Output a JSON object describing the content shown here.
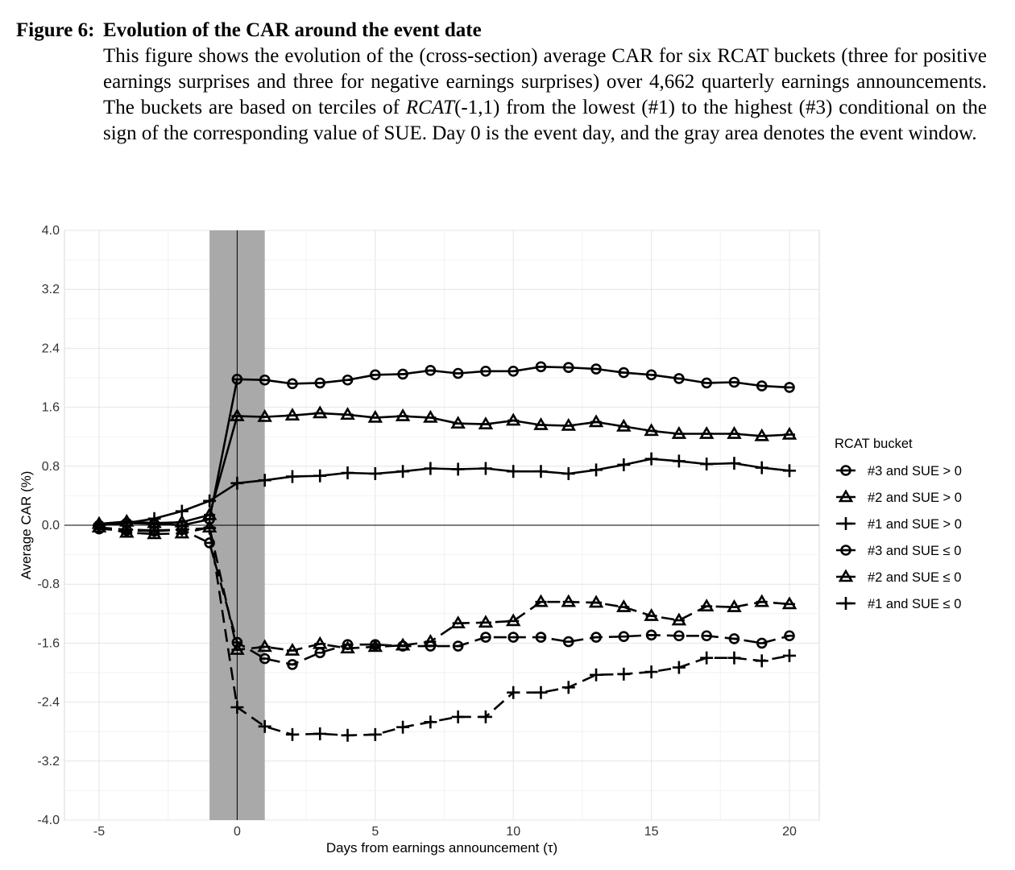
{
  "caption": {
    "label": "Figure 6:",
    "title": "Evolution of the CAR around the event date",
    "body_before": "This figure shows the evolution of the (cross-section) average CAR for six RCAT buckets (three for positive earnings surprises and three for negative earnings surprises) over 4,662 quarterly earnings announcements. The buckets are based on terciles of ",
    "body_italic": "RCAT",
    "body_after": "(-1,1) from the lowest (#1) to the highest (#3) conditional on the sign of the corresponding value of SUE. Day 0 is the event day, and the gray area denotes the event window."
  },
  "chart_data": {
    "type": "line",
    "xlabel": "Days from earnings announcement (τ)",
    "ylabel": "Average CAR (%)",
    "xlim": [
      -5,
      20
    ],
    "ylim": [
      -4.0,
      4.0
    ],
    "x_ticks": [
      -5,
      0,
      5,
      10,
      15,
      20
    ],
    "y_ticks": [
      "4.0",
      "3.2",
      "2.4",
      "1.6",
      "0.8",
      "0.0",
      "-0.8",
      "-1.6",
      "-2.4",
      "-3.2",
      "-4.0"
    ],
    "grid": true,
    "event_window": [
      -1,
      1
    ],
    "event_window_color": "#a9a9a9",
    "legend_title": "RCAT bucket",
    "legend_position": "right",
    "x": [
      -5,
      -4,
      -3,
      -2,
      -1,
      0,
      1,
      2,
      3,
      4,
      5,
      6,
      7,
      8,
      9,
      10,
      11,
      12,
      13,
      14,
      15,
      16,
      17,
      18,
      19,
      20
    ],
    "series": [
      {
        "name": "#3 and SUE > 0",
        "marker": "circle-bar",
        "dash": "solid",
        "values": [
          0.0,
          0.03,
          0.02,
          0.0,
          0.08,
          1.98,
          1.97,
          1.92,
          1.93,
          1.97,
          2.04,
          2.05,
          2.1,
          2.06,
          2.09,
          2.09,
          2.15,
          2.14,
          2.12,
          2.07,
          2.04,
          1.99,
          1.93,
          1.94,
          1.89,
          1.87
        ]
      },
      {
        "name": "#2 and SUE > 0",
        "marker": "triangle-bar",
        "dash": "solid",
        "values": [
          0.02,
          0.05,
          0.03,
          0.04,
          0.14,
          1.48,
          1.47,
          1.49,
          1.52,
          1.5,
          1.46,
          1.48,
          1.46,
          1.38,
          1.37,
          1.42,
          1.36,
          1.35,
          1.4,
          1.34,
          1.28,
          1.24,
          1.24,
          1.24,
          1.21,
          1.23
        ]
      },
      {
        "name": "#1 and SUE > 0",
        "marker": "plus",
        "dash": "solid",
        "values": [
          0.0,
          0.03,
          0.09,
          0.19,
          0.33,
          0.57,
          0.61,
          0.66,
          0.67,
          0.71,
          0.7,
          0.73,
          0.77,
          0.76,
          0.77,
          0.73,
          0.73,
          0.7,
          0.75,
          0.82,
          0.9,
          0.87,
          0.83,
          0.84,
          0.78,
          0.74
        ]
      },
      {
        "name": "#3 and SUE ≤ 0",
        "marker": "circle-bar",
        "dash": "dashed",
        "values": [
          -0.05,
          -0.07,
          -0.08,
          -0.06,
          -0.24,
          -1.59,
          -1.81,
          -1.89,
          -1.73,
          -1.62,
          -1.62,
          -1.64,
          -1.64,
          -1.64,
          -1.52,
          -1.52,
          -1.52,
          -1.58,
          -1.52,
          -1.51,
          -1.49,
          -1.5,
          -1.5,
          -1.54,
          -1.6,
          -1.5
        ]
      },
      {
        "name": "#2 and SUE ≤ 0",
        "marker": "triangle-bar",
        "dash": "dashed",
        "values": [
          -0.03,
          -0.1,
          -0.12,
          -0.11,
          -0.03,
          -1.69,
          -1.65,
          -1.7,
          -1.61,
          -1.67,
          -1.65,
          -1.63,
          -1.58,
          -1.33,
          -1.32,
          -1.3,
          -1.04,
          -1.04,
          -1.05,
          -1.11,
          -1.23,
          -1.29,
          -1.1,
          -1.11,
          -1.04,
          -1.07
        ]
      },
      {
        "name": "#1 and SUE ≤ 0",
        "marker": "plus",
        "dash": "dashed",
        "values": [
          -0.03,
          -0.06,
          -0.07,
          -0.06,
          -0.04,
          -2.47,
          -2.73,
          -2.84,
          -2.83,
          -2.85,
          -2.84,
          -2.74,
          -2.67,
          -2.6,
          -2.6,
          -2.27,
          -2.27,
          -2.2,
          -2.03,
          -2.02,
          -1.99,
          -1.93,
          -1.8,
          -1.8,
          -1.84,
          -1.77
        ]
      }
    ]
  }
}
